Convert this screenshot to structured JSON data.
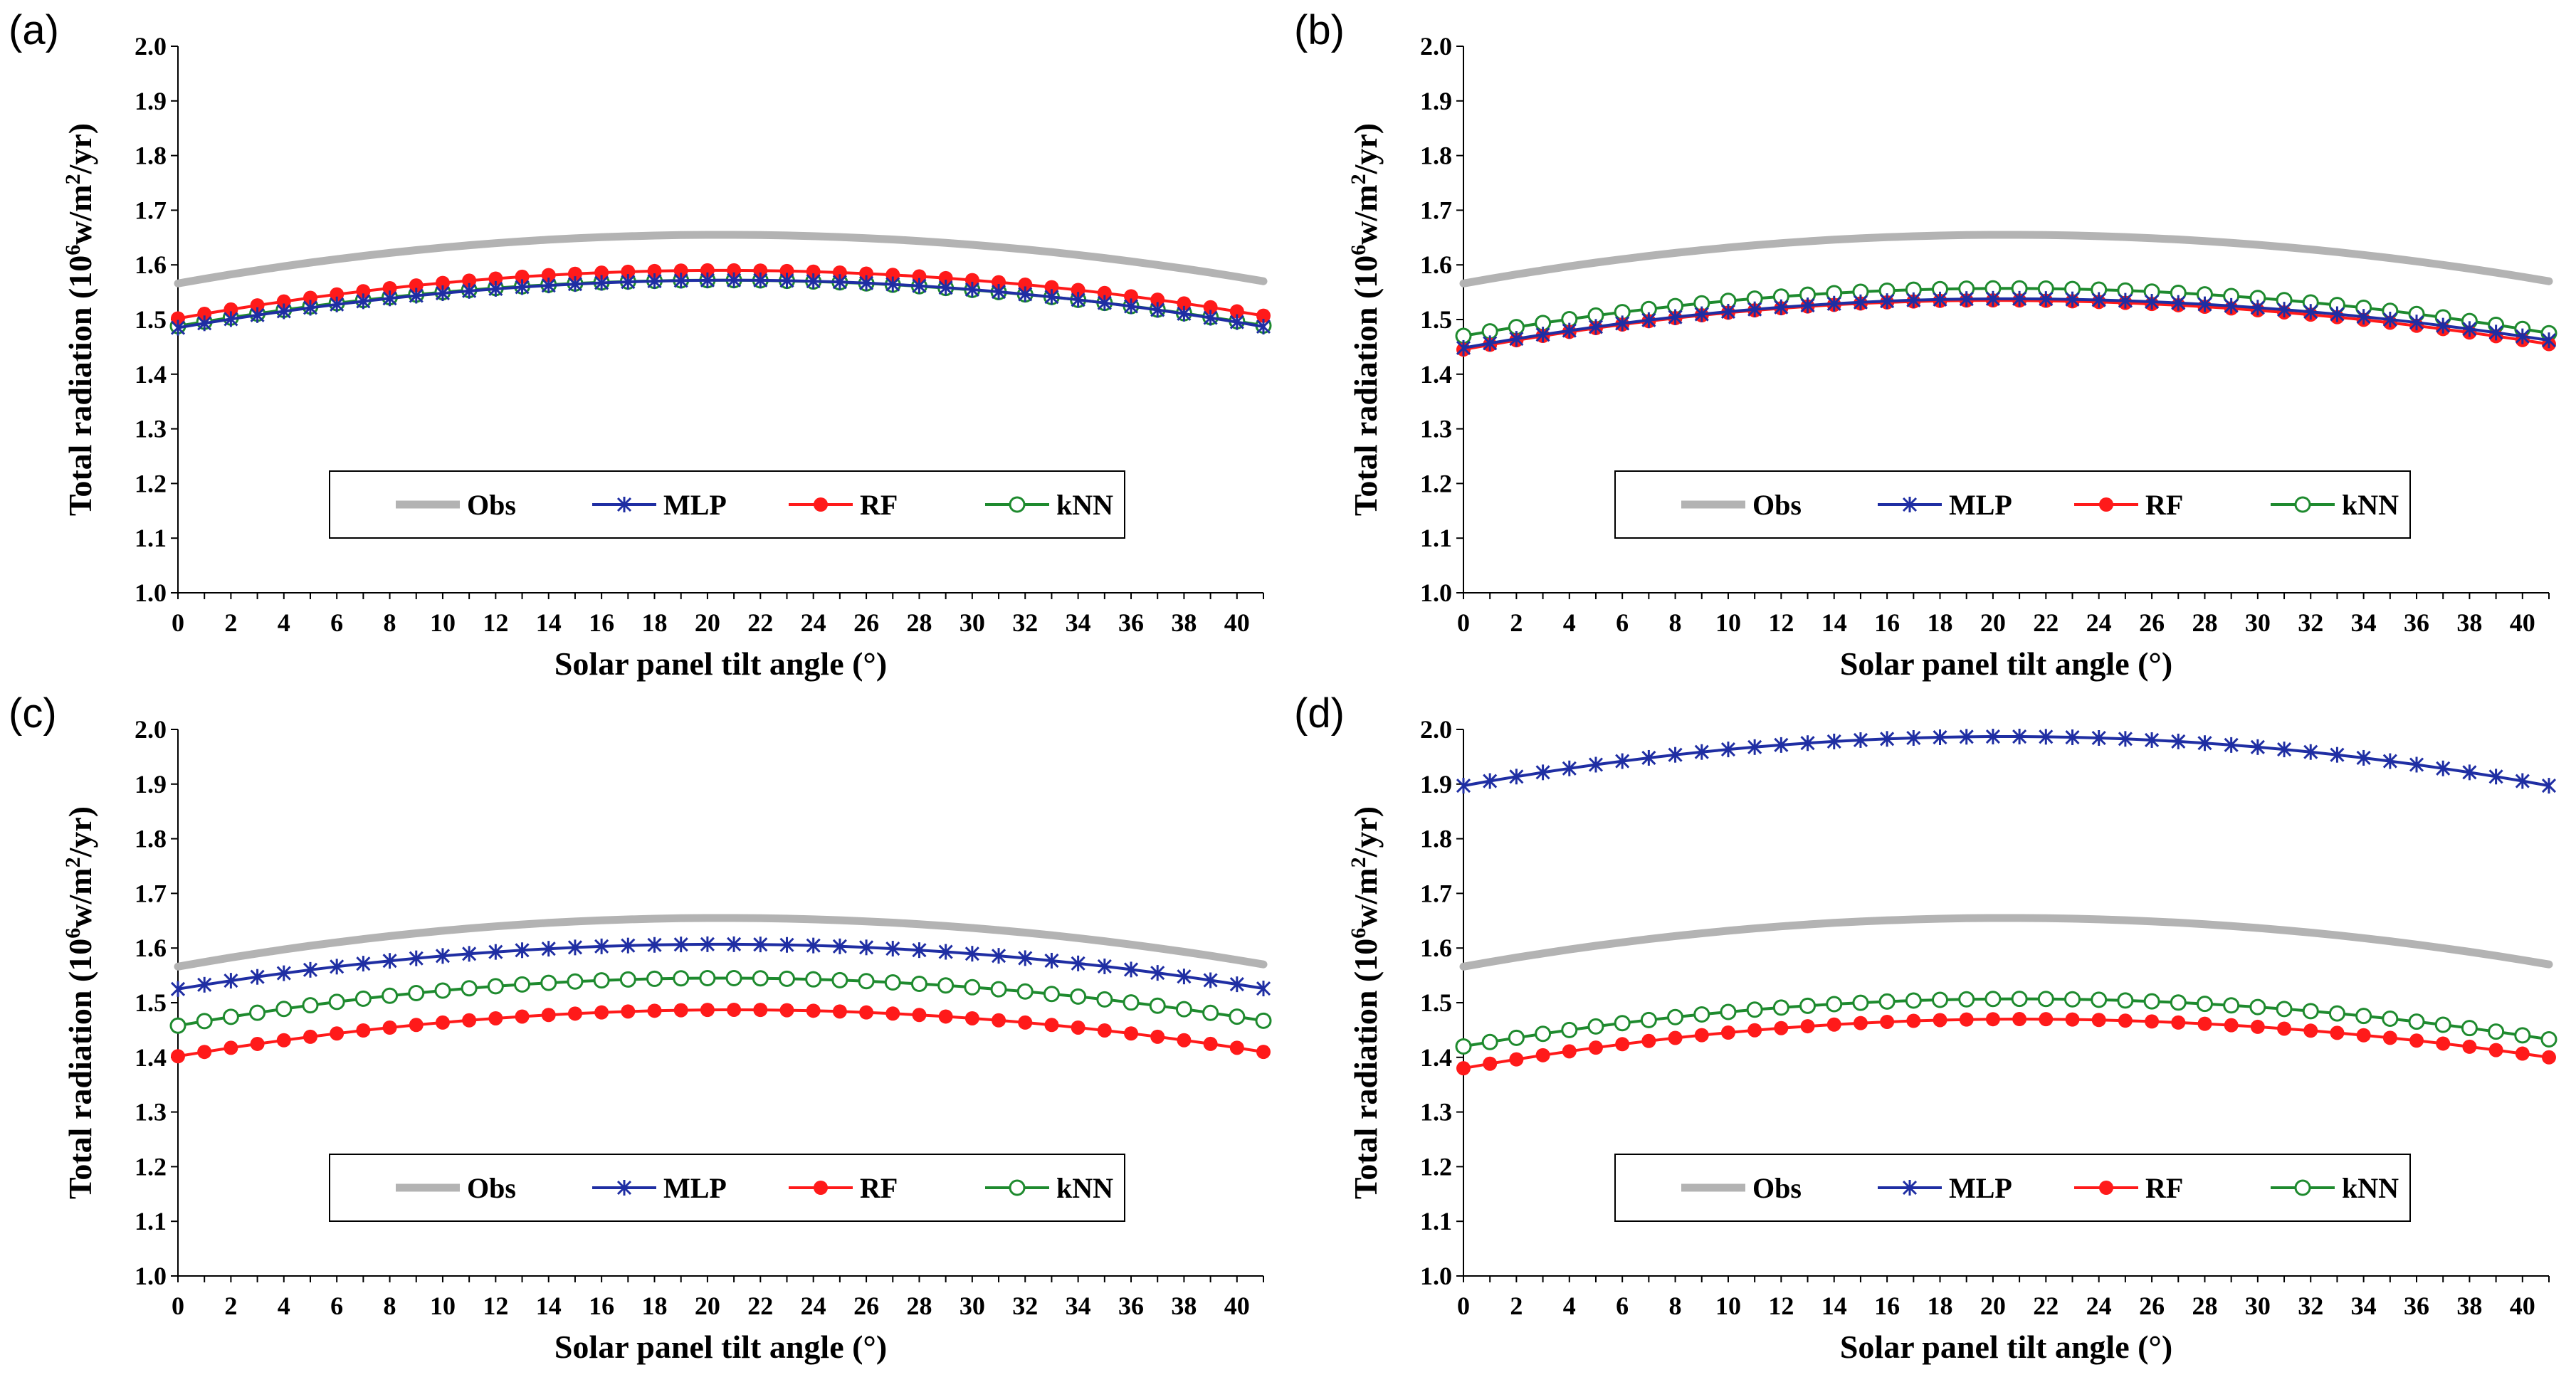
{
  "chart_data": [
    {
      "type": "line",
      "panel_label": "(a)",
      "xlabel": "Solar panel tilt angle (°)",
      "ylabel_main": "Total radiation (10",
      "ylabel_sup1": "6",
      "ylabel_mid": "w/m",
      "ylabel_sup2": "2",
      "ylabel_end": "/yr)",
      "ylim": [
        1.0,
        2.0
      ],
      "yticks": [
        "1.0",
        "1.1",
        "1.2",
        "1.3",
        "1.4",
        "1.5",
        "1.6",
        "1.7",
        "1.8",
        "1.9",
        "2.0"
      ],
      "xlim": [
        0,
        41
      ],
      "xticks": [
        "0",
        "2",
        "4",
        "6",
        "8",
        "10",
        "12",
        "14",
        "16",
        "18",
        "20",
        "22",
        "24",
        "26",
        "28",
        "30",
        "32",
        "34",
        "36",
        "38",
        "40"
      ],
      "legend": [
        "Obs",
        "MLP",
        "RF",
        "kNN"
      ],
      "series": [
        {
          "name": "Obs",
          "shape": "quadratic",
          "start": 1.566,
          "peak": 1.655,
          "peak_x": 20.5,
          "end": 1.57
        },
        {
          "name": "MLP",
          "shape": "quadratic",
          "start": 1.485,
          "peak": 1.572,
          "peak_x": 21,
          "end": 1.487
        },
        {
          "name": "RF",
          "shape": "quadratic",
          "start": 1.502,
          "peak": 1.59,
          "peak_x": 20.5,
          "end": 1.507
        },
        {
          "name": "kNN",
          "shape": "quadratic",
          "start": 1.488,
          "peak": 1.572,
          "peak_x": 20.5,
          "end": 1.489
        }
      ]
    },
    {
      "type": "line",
      "panel_label": "(b)",
      "xlabel": "Solar panel tilt angle (°)",
      "ylabel_main": "Total radiation (10",
      "ylabel_sup1": "6",
      "ylabel_mid": "w/m",
      "ylabel_sup2": "2",
      "ylabel_end": "/yr)",
      "ylim": [
        1.0,
        2.0
      ],
      "yticks": [
        "1.0",
        "1.1",
        "1.2",
        "1.3",
        "1.4",
        "1.5",
        "1.6",
        "1.7",
        "1.8",
        "1.9",
        "2.0"
      ],
      "xlim": [
        0,
        41
      ],
      "xticks": [
        "0",
        "2",
        "4",
        "6",
        "8",
        "10",
        "12",
        "14",
        "16",
        "18",
        "20",
        "22",
        "24",
        "26",
        "28",
        "30",
        "32",
        "34",
        "36",
        "38",
        "40"
      ],
      "legend": [
        "Obs",
        "MLP",
        "RF",
        "kNN"
      ],
      "series": [
        {
          "name": "Obs",
          "shape": "quadratic",
          "start": 1.566,
          "peak": 1.655,
          "peak_x": 20.5,
          "end": 1.57
        },
        {
          "name": "MLP",
          "shape": "quadratic",
          "start": 1.448,
          "peak": 1.538,
          "peak_x": 20.5,
          "end": 1.462
        },
        {
          "name": "RF",
          "shape": "quadratic",
          "start": 1.445,
          "peak": 1.535,
          "peak_x": 20,
          "end": 1.455
        },
        {
          "name": "kNN",
          "shape": "quadratic",
          "start": 1.47,
          "peak": 1.557,
          "peak_x": 20.5,
          "end": 1.475
        }
      ]
    },
    {
      "type": "line",
      "panel_label": "(c)",
      "xlabel": "Solar panel tilt angle (°)",
      "ylabel_main": "Total radiation (10",
      "ylabel_sup1": "6",
      "ylabel_mid": "w/m",
      "ylabel_sup2": "2",
      "ylabel_end": "/yr)",
      "ylim": [
        1.0,
        2.0
      ],
      "yticks": [
        "1.0",
        "1.1",
        "1.2",
        "1.3",
        "1.4",
        "1.5",
        "1.6",
        "1.7",
        "1.8",
        "1.9",
        "2.0"
      ],
      "xlim": [
        0,
        41
      ],
      "xticks": [
        "0",
        "2",
        "4",
        "6",
        "8",
        "10",
        "12",
        "14",
        "16",
        "18",
        "20",
        "22",
        "24",
        "26",
        "28",
        "30",
        "32",
        "34",
        "36",
        "38",
        "40"
      ],
      "legend": [
        "Obs",
        "MLP",
        "RF",
        "kNN"
      ],
      "series": [
        {
          "name": "Obs",
          "shape": "quadratic",
          "start": 1.566,
          "peak": 1.655,
          "peak_x": 20.5,
          "end": 1.57
        },
        {
          "name": "MLP",
          "shape": "quadratic",
          "start": 1.525,
          "peak": 1.607,
          "peak_x": 20.5,
          "end": 1.526
        },
        {
          "name": "RF",
          "shape": "quadratic",
          "start": 1.402,
          "peak": 1.487,
          "peak_x": 21,
          "end": 1.41
        },
        {
          "name": "kNN",
          "shape": "quadratic",
          "start": 1.458,
          "peak": 1.545,
          "peak_x": 20.5,
          "end": 1.467
        }
      ]
    },
    {
      "type": "line",
      "panel_label": "(d)",
      "xlabel": "Solar panel tilt angle (°)",
      "ylabel_main": "Total radiation (10",
      "ylabel_sup1": "6",
      "ylabel_mid": "w/m",
      "ylabel_sup2": "2",
      "ylabel_end": "/yr)",
      "ylim": [
        1.0,
        2.0
      ],
      "yticks": [
        "1.0",
        "1.1",
        "1.2",
        "1.3",
        "1.4",
        "1.5",
        "1.6",
        "1.7",
        "1.8",
        "1.9",
        "2.0"
      ],
      "xlim": [
        0,
        41
      ],
      "xticks": [
        "0",
        "2",
        "4",
        "6",
        "8",
        "10",
        "12",
        "14",
        "16",
        "18",
        "20",
        "22",
        "24",
        "26",
        "28",
        "30",
        "32",
        "34",
        "36",
        "38",
        "40"
      ],
      "legend": [
        "Obs",
        "MLP",
        "RF",
        "kNN"
      ],
      "series": [
        {
          "name": "Obs",
          "shape": "quadratic",
          "start": 1.566,
          "peak": 1.655,
          "peak_x": 20.5,
          "end": 1.57
        },
        {
          "name": "MLP",
          "shape": "quadratic",
          "start": 1.897,
          "peak": 1.987,
          "peak_x": 20.5,
          "end": 1.897
        },
        {
          "name": "RF",
          "shape": "quadratic",
          "start": 1.38,
          "peak": 1.47,
          "peak_x": 21,
          "end": 1.4
        },
        {
          "name": "kNN",
          "shape": "quadratic",
          "start": 1.42,
          "peak": 1.507,
          "peak_x": 21,
          "end": 1.433
        }
      ]
    }
  ],
  "colors": {
    "Obs": "#b3b3b3",
    "MLP": "#1f2ea3",
    "RF": "#ff1a1a",
    "kNN": "#1e8a2e"
  }
}
